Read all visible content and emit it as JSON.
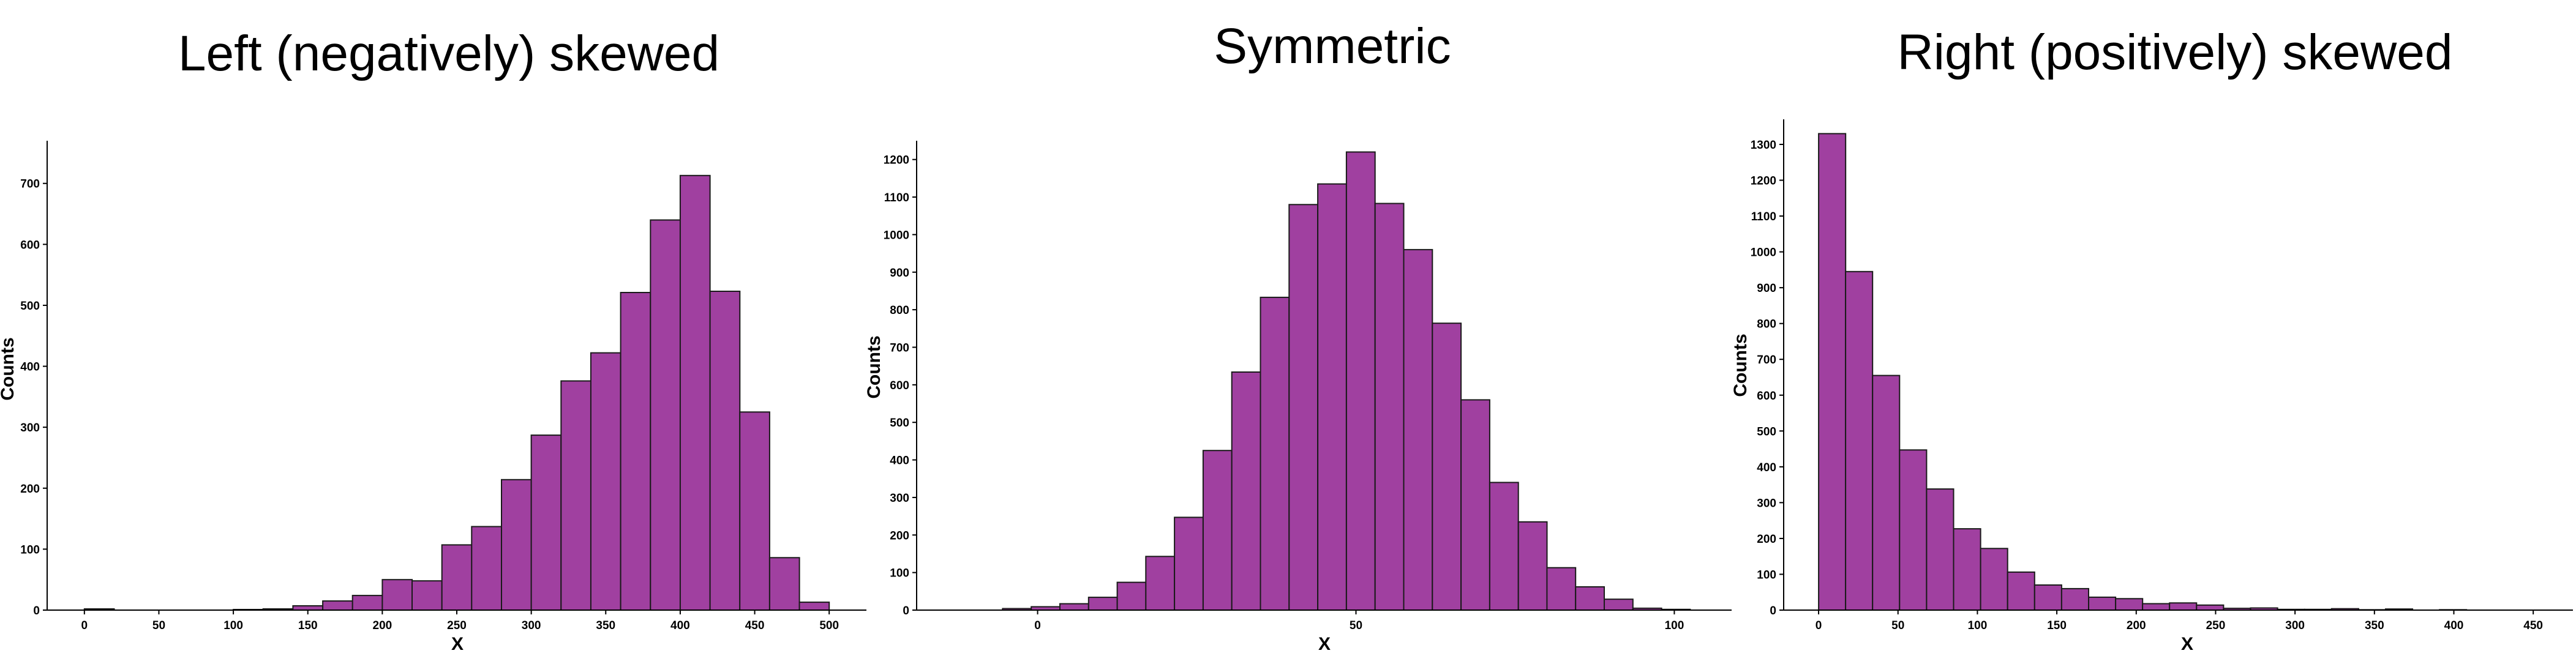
{
  "bar_color": "#a040a0",
  "edge_color": "#1a1a1a",
  "chart_data": [
    {
      "type": "bar",
      "title": "Left (negatively) skewed",
      "xlabel": "X",
      "ylabel": "Counts",
      "xlim": [
        -25,
        525
      ],
      "ylim": [
        0,
        770
      ],
      "xticks": [
        0,
        50,
        100,
        150,
        200,
        250,
        300,
        350,
        400,
        450,
        500
      ],
      "yticks": [
        0,
        100,
        200,
        300,
        400,
        500,
        600,
        700
      ],
      "bin_edges": [
        0,
        20,
        40,
        60,
        80,
        100,
        120,
        140,
        160,
        180,
        200,
        220,
        240,
        260,
        280,
        300,
        320,
        340,
        360,
        380,
        400,
        420,
        440,
        460,
        480,
        500
      ],
      "values": [
        2,
        0,
        0,
        0,
        0,
        1,
        2,
        7,
        15,
        24,
        50,
        48,
        107,
        137,
        214,
        287,
        376,
        422,
        521,
        640,
        713,
        523,
        325,
        86,
        13
      ]
    },
    {
      "type": "bar",
      "title": "Symmetric",
      "xlabel": "X",
      "ylabel": "Counts",
      "xlim": [
        -19,
        109
      ],
      "ylim": [
        0,
        1250
      ],
      "xticks": [
        0,
        50,
        100
      ],
      "yticks": [
        0,
        100,
        200,
        300,
        400,
        500,
        600,
        700,
        800,
        900,
        1000,
        1100,
        1200
      ],
      "bin_edges": [
        -5.5,
        -1,
        3.5,
        8,
        12.5,
        17,
        21.5,
        26,
        30.5,
        35,
        39.5,
        44,
        48.5,
        53,
        57.5,
        62,
        66.5,
        71,
        75.5,
        80,
        84.5,
        89,
        93.5,
        98,
        102.5
      ],
      "values": [
        4,
        9,
        17,
        34,
        74,
        143,
        247,
        425,
        634,
        833,
        1080,
        1135,
        1220,
        1083,
        960,
        764,
        560,
        340,
        235,
        113,
        62,
        29,
        5,
        2
      ]
    },
    {
      "type": "bar",
      "title": "Right (positively) skewed",
      "xlabel": "X",
      "ylabel": "Counts",
      "xlim": [
        -22,
        475
      ],
      "ylim": [
        0,
        1370
      ],
      "xticks": [
        0,
        50,
        100,
        150,
        200,
        250,
        300,
        350,
        400,
        450
      ],
      "yticks": [
        0,
        100,
        200,
        300,
        400,
        500,
        600,
        700,
        800,
        900,
        1000,
        1100,
        1200,
        1300
      ],
      "bin_edges": [
        0,
        17,
        34,
        51,
        68,
        85,
        102,
        119,
        136,
        153,
        170,
        187,
        204,
        221,
        238,
        255,
        272,
        289,
        306,
        323,
        340,
        357,
        374,
        391,
        408
      ],
      "values": [
        1330,
        945,
        655,
        447,
        338,
        227,
        172,
        106,
        70,
        60,
        36,
        32,
        18,
        20,
        14,
        5,
        6,
        2,
        2,
        4,
        1,
        3,
        0,
        1
      ]
    }
  ]
}
